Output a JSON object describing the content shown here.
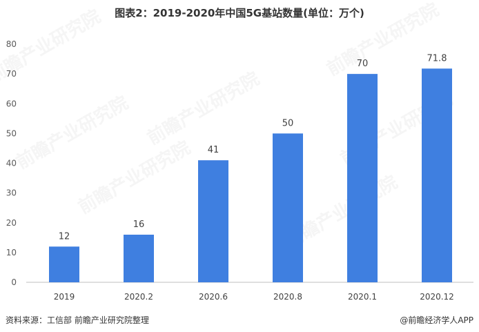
{
  "chart_data": {
    "type": "bar",
    "title": "图表2：2019-2020年中国5G基站数量(单位：万个)",
    "categories": [
      "2019",
      "2020.2",
      "2020.6",
      "2020.8",
      "2020.1",
      "2020.12"
    ],
    "values": [
      12,
      16,
      41,
      50,
      70,
      71.8
    ],
    "value_labels": [
      "12",
      "16",
      "41",
      "50",
      "70",
      "71.8"
    ],
    "xlabel": "",
    "ylabel": "",
    "ylim": [
      0,
      80
    ],
    "yticks": [
      "0",
      "10",
      "20",
      "30",
      "40",
      "50",
      "60",
      "70",
      "80"
    ],
    "grid": false,
    "bar_color": "#3f7fe0"
  },
  "footer": {
    "source": "资料来源：工信部 前瞻产业研究院整理",
    "credit": "@前瞻经济学人APP"
  },
  "watermark": "前瞻产业研究院"
}
